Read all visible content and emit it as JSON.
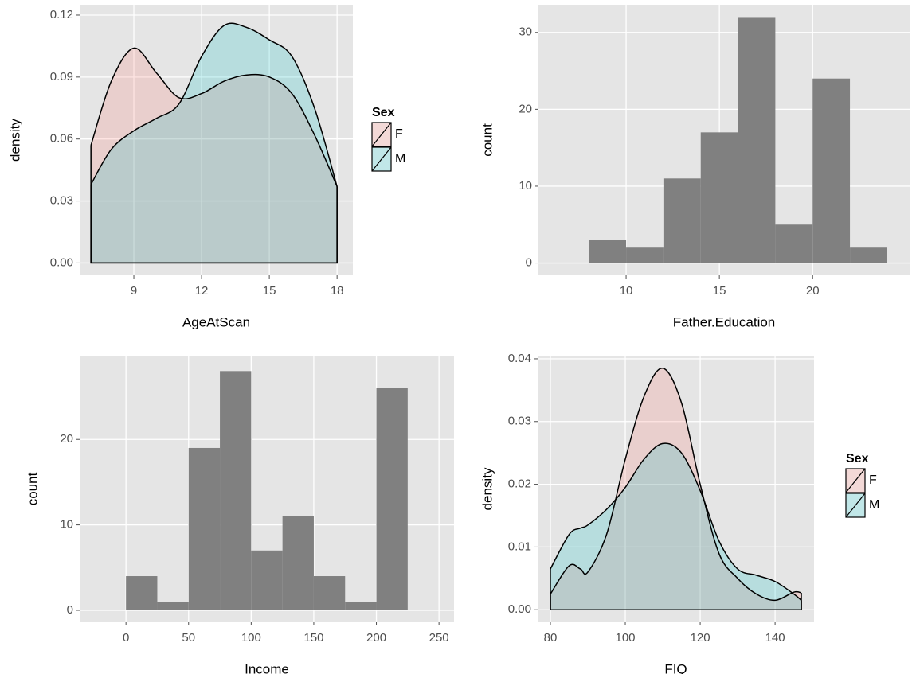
{
  "chart_data": [
    {
      "type": "density",
      "xlabel": "AgeAtScan",
      "ylabel": "density",
      "legend_title": "Sex",
      "x": [
        7.1,
        8,
        9,
        10,
        11,
        12,
        13,
        14,
        15,
        16,
        17,
        18
      ],
      "series": [
        {
          "name": "F",
          "color": "#F8766D",
          "values": [
            0.057,
            0.088,
            0.104,
            0.092,
            0.08,
            0.082,
            0.088,
            0.091,
            0.09,
            0.082,
            0.062,
            0.037
          ]
        },
        {
          "name": "M",
          "color": "#00BFC4",
          "values": [
            0.038,
            0.055,
            0.064,
            0.07,
            0.077,
            0.1,
            0.115,
            0.114,
            0.108,
            0.1,
            0.075,
            0.037
          ]
        }
      ],
      "xlim": [
        6.6,
        18.7
      ],
      "ylim": [
        -0.006,
        0.125
      ],
      "xticks": [
        9,
        12,
        15,
        18
      ],
      "yticks": [
        {
          "value": 0,
          "label": "0.00"
        },
        0.03,
        0.06,
        0.09,
        0.12
      ]
    },
    {
      "type": "histogram",
      "xlabel": "Father.Education",
      "ylabel": "count",
      "color": "#808080",
      "bins": [
        8,
        10,
        12,
        14,
        16,
        18,
        20,
        22,
        24
      ],
      "values": [
        3,
        2,
        11,
        17,
        32,
        5,
        24,
        2
      ],
      "xlim": [
        5.3,
        25.2
      ],
      "ylim": [
        -1.6,
        33.6
      ],
      "xticks": [
        10,
        15,
        20
      ],
      "yticks": [
        0,
        10,
        20,
        30
      ]
    },
    {
      "type": "histogram",
      "xlabel": "Income",
      "ylabel": "count",
      "color": "#808080",
      "bins": [
        0,
        25,
        50,
        75,
        100,
        125,
        150,
        175,
        200,
        225
      ],
      "values": [
        4,
        1,
        19,
        28,
        7,
        11,
        4,
        1,
        26
      ],
      "xlim": [
        -37,
        262
      ],
      "ylim": [
        -1.4,
        29.8
      ],
      "xticks": [
        0,
        50,
        100,
        150,
        200,
        250
      ],
      "yticks": [
        0,
        10,
        20
      ]
    },
    {
      "type": "density",
      "xlabel": "FIQ",
      "ylabel": "density",
      "legend_title": "Sex",
      "x": [
        80,
        85,
        88,
        90,
        95,
        100,
        105,
        110,
        115,
        120,
        125,
        130,
        135,
        140,
        145,
        147
      ],
      "series": [
        {
          "name": "F",
          "color": "#F8766D",
          "values": [
            0.0025,
            0.007,
            0.0065,
            0.006,
            0.012,
            0.024,
            0.034,
            0.0385,
            0.033,
            0.02,
            0.009,
            0.005,
            0.0025,
            0.0015,
            0.0028,
            0.0027
          ]
        },
        {
          "name": "M",
          "color": "#00BFC4",
          "values": [
            0.0065,
            0.012,
            0.013,
            0.0135,
            0.016,
            0.0195,
            0.024,
            0.0265,
            0.025,
            0.019,
            0.011,
            0.0065,
            0.0055,
            0.0045,
            0.0025,
            0.0015
          ]
        }
      ],
      "xlim": [
        76.6,
        150.4
      ],
      "ylim": [
        -0.002,
        0.0405
      ],
      "xticks": [
        80,
        100,
        120,
        140
      ],
      "yticks": [
        {
          "value": 0,
          "label": "0.00"
        },
        0.01,
        0.02,
        0.03,
        0.04
      ]
    }
  ]
}
